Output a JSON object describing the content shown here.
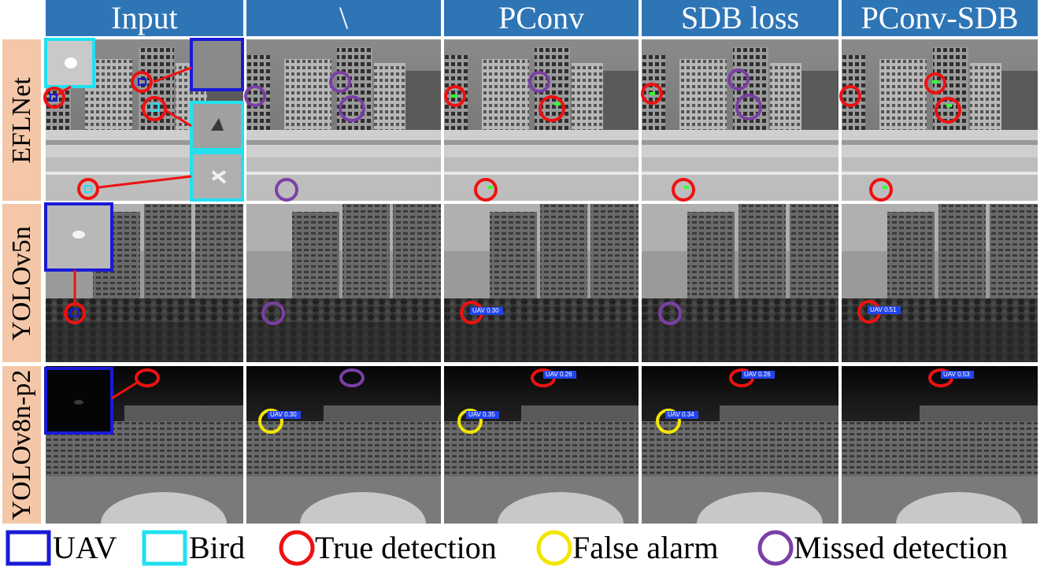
{
  "columns": [
    "Input",
    "\\",
    "PConv",
    "SDB loss",
    "PConv-SDB"
  ],
  "rows": [
    "EFLNet",
    "YOLOv5n",
    "YOLOv8n-p2"
  ],
  "legend": {
    "uav": "UAV",
    "bird": "Bird",
    "true_detection": "True detection",
    "false_alarm": "False alarm",
    "missed_detection": "Missed detection"
  },
  "detection_labels": {
    "yolov5n_pconv": "UAV 0.30",
    "yolov5n_pconv_sdb": "UAV 0.51",
    "yolov8_baseline": "UAV 0.30",
    "yolov8_pconv_top": "UAV 0.26",
    "yolov8_pconv_yellow": "UAV 0.35",
    "yolov8_sdb_top": "UAV 0.26",
    "yolov8_sdb_yellow": "UAV 0.34",
    "yolov8_pconv_sdb_top": "UAV 0.53"
  },
  "colors": {
    "header": "#2e75b6",
    "row_label": "#f4c7a8",
    "uav_box": "#1a1ad6",
    "bird_box": "#22e0f0",
    "true_detection": "#ee1111",
    "false_alarm": "#f2e600",
    "missed_detection": "#7b3fa6"
  }
}
